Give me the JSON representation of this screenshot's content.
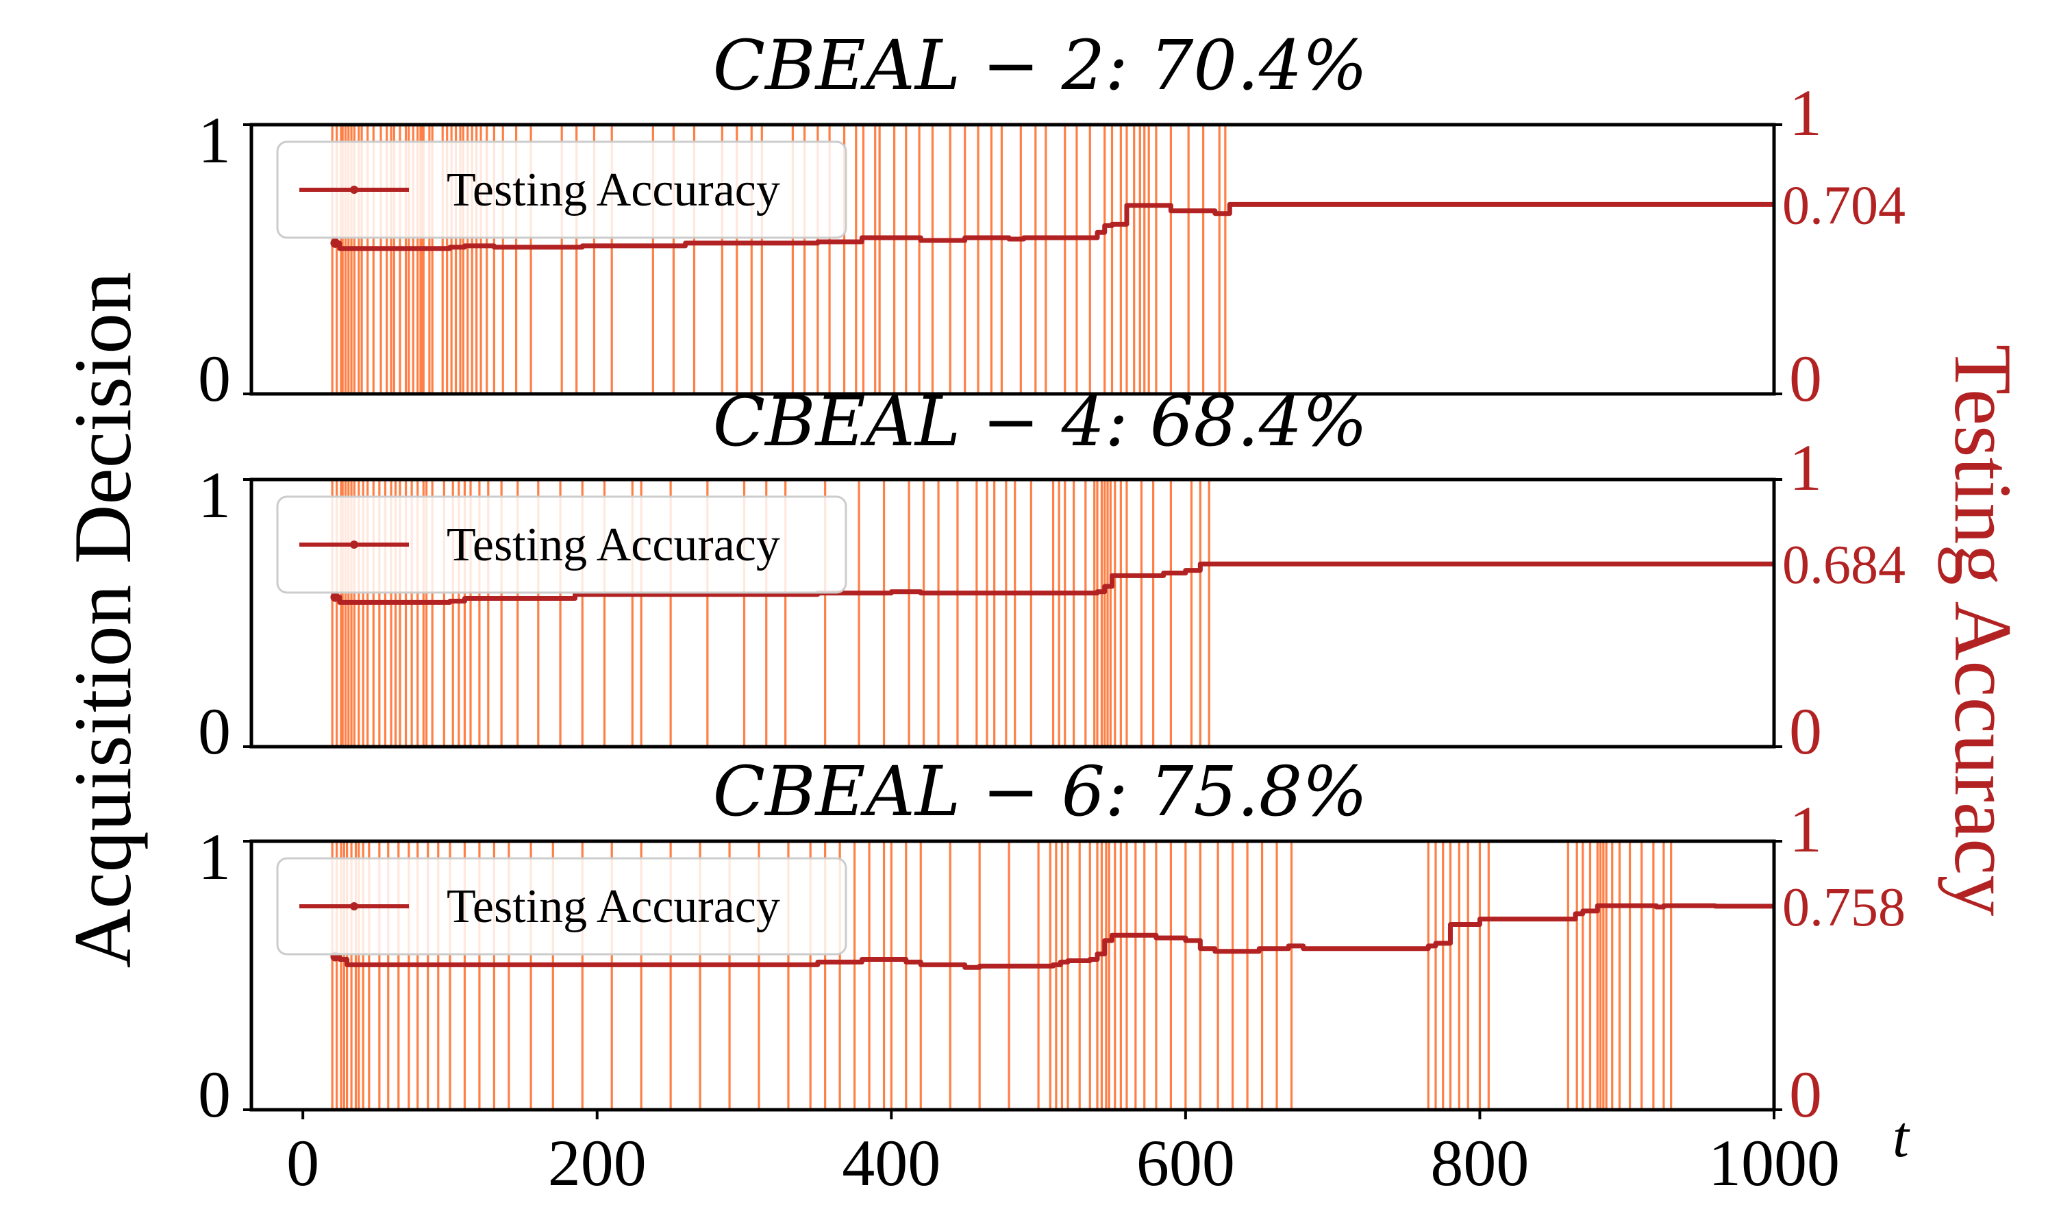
{
  "figure": {
    "left_ylabel": "Acquisition Decision",
    "right_ylabel": "Testing Accuracy",
    "xlabel": "t",
    "left_yticks": [
      "0",
      "1"
    ],
    "right_yticks": [
      "0",
      "1"
    ],
    "xticks": [
      "0",
      "200",
      "400",
      "600",
      "800",
      "1000"
    ],
    "colors": {
      "acquisition": "#FF7F45",
      "accuracy": "#B22222",
      "right_axis_text": "#B22222"
    }
  },
  "chart_data": [
    {
      "type": "line",
      "title": "CBEAL − 2: 70.4%",
      "legend": {
        "label": "Testing Accuracy",
        "placement": "top-left"
      },
      "final_accuracy_label": "0.704",
      "xlim": [
        -35,
        1000
      ],
      "ylim_left": [
        0,
        1
      ],
      "ylim_right": [
        0,
        1
      ],
      "series": [
        {
          "name": "Testing Accuracy",
          "x": [
            22,
            25,
            30,
            50,
            100,
            110,
            130,
            180,
            190,
            250,
            260,
            300,
            330,
            350,
            370,
            380,
            400,
            420,
            440,
            450,
            480,
            490,
            510,
            520,
            540,
            545,
            550,
            560,
            575,
            585,
            590,
            600,
            610,
            620,
            625,
            630,
            700,
            800,
            900,
            1000
          ],
          "y": [
            0.56,
            0.54,
            0.54,
            0.54,
            0.545,
            0.55,
            0.545,
            0.545,
            0.55,
            0.55,
            0.56,
            0.56,
            0.56,
            0.565,
            0.565,
            0.58,
            0.58,
            0.57,
            0.57,
            0.58,
            0.575,
            0.58,
            0.58,
            0.58,
            0.6,
            0.625,
            0.63,
            0.7,
            0.7,
            0.7,
            0.68,
            0.68,
            0.68,
            0.67,
            0.67,
            0.704,
            0.704,
            0.704,
            0.704,
            0.704
          ]
        }
      ],
      "acquisitions": [
        20,
        23,
        26,
        27,
        29,
        31,
        33,
        35,
        38,
        40,
        44,
        48,
        53,
        57,
        60,
        62,
        66,
        70,
        72,
        75,
        78,
        80,
        81,
        82,
        86,
        88,
        95,
        98,
        101,
        104,
        107,
        109,
        112,
        115,
        118,
        121,
        125,
        130,
        136,
        145,
        155,
        176,
        186,
        198,
        210,
        238,
        252,
        266,
        285,
        295,
        305,
        312,
        333,
        341,
        350,
        358,
        368,
        376,
        381,
        389,
        392,
        402,
        410,
        419,
        428,
        440,
        450,
        459,
        468,
        475,
        488,
        498,
        505,
        518,
        526,
        535,
        545,
        550,
        556,
        560,
        565,
        569,
        572,
        575,
        580,
        590,
        602,
        612,
        623,
        627
      ]
    },
    {
      "type": "line",
      "title": "CBEAL − 4: 68.4%",
      "legend": {
        "label": "Testing Accuracy",
        "placement": "top-left"
      },
      "final_accuracy_label": "0.684",
      "xlim": [
        -35,
        1000
      ],
      "ylim_left": [
        0,
        1
      ],
      "ylim_right": [
        0,
        1
      ],
      "series": [
        {
          "name": "Testing Accuracy",
          "x": [
            22,
            25,
            30,
            100,
            110,
            130,
            180,
            185,
            200,
            270,
            280,
            340,
            350,
            380,
            400,
            420,
            430,
            500,
            510,
            540,
            545,
            550,
            560,
            580,
            585,
            600,
            610,
            620,
            700,
            800,
            900,
            1000
          ],
          "y": [
            0.56,
            0.54,
            0.54,
            0.545,
            0.555,
            0.555,
            0.555,
            0.57,
            0.57,
            0.57,
            0.57,
            0.57,
            0.575,
            0.575,
            0.58,
            0.575,
            0.575,
            0.575,
            0.575,
            0.58,
            0.6,
            0.64,
            0.64,
            0.64,
            0.65,
            0.66,
            0.684,
            0.684,
            0.684,
            0.684,
            0.684,
            0.684
          ]
        }
      ],
      "acquisitions": [
        20,
        23,
        26,
        27,
        29,
        31,
        33,
        35,
        38,
        41,
        44,
        48,
        52,
        56,
        60,
        63,
        66,
        70,
        74,
        78,
        82,
        84,
        88,
        96,
        102,
        106,
        110,
        114,
        120,
        126,
        135,
        146,
        160,
        175,
        190,
        205,
        224,
        230,
        250,
        275,
        300,
        315,
        328,
        355,
        378,
        395,
        412,
        422,
        432,
        445,
        458,
        465,
        470,
        478,
        484,
        495,
        510,
        514,
        518,
        524,
        532,
        538,
        540,
        543,
        545,
        547,
        549,
        552,
        556,
        560,
        570,
        578,
        590,
        604,
        610,
        616
      ]
    },
    {
      "type": "line",
      "title": "CBEAL − 6: 75.8%",
      "legend": {
        "label": "Testing Accuracy",
        "placement": "top-left"
      },
      "final_accuracy_label": "0.758",
      "xlim": [
        -35,
        1000
      ],
      "ylim_left": [
        0,
        1
      ],
      "ylim_right": [
        0,
        1
      ],
      "series": [
        {
          "name": "Testing Accuracy",
          "x": [
            22,
            25,
            30,
            100,
            200,
            300,
            340,
            350,
            380,
            400,
            410,
            420,
            450,
            460,
            500,
            510,
            515,
            520,
            530,
            535,
            540,
            545,
            550,
            560,
            580,
            590,
            600,
            610,
            620,
            640,
            650,
            670,
            680,
            700,
            760,
            765,
            770,
            780,
            790,
            800,
            805,
            850,
            860,
            865,
            870,
            880,
            900,
            920,
            925,
            940,
            960,
            1000
          ],
          "y": [
            0.57,
            0.56,
            0.54,
            0.54,
            0.54,
            0.54,
            0.54,
            0.55,
            0.56,
            0.56,
            0.55,
            0.54,
            0.53,
            0.535,
            0.535,
            0.54,
            0.55,
            0.555,
            0.555,
            0.56,
            0.58,
            0.63,
            0.65,
            0.65,
            0.64,
            0.64,
            0.63,
            0.6,
            0.59,
            0.59,
            0.6,
            0.61,
            0.6,
            0.6,
            0.6,
            0.61,
            0.62,
            0.69,
            0.69,
            0.71,
            0.71,
            0.71,
            0.71,
            0.73,
            0.74,
            0.76,
            0.76,
            0.755,
            0.76,
            0.76,
            0.758,
            0.758
          ]
        }
      ],
      "acquisitions": [
        20,
        23,
        26,
        28,
        30,
        33,
        36,
        38,
        41,
        45,
        52,
        58,
        65,
        72,
        78,
        85,
        92,
        100,
        110,
        120,
        130,
        140,
        155,
        170,
        190,
        210,
        230,
        250,
        270,
        290,
        310,
        330,
        345,
        355,
        365,
        375,
        385,
        395,
        400,
        410,
        420,
        440,
        460,
        480,
        500,
        508,
        512,
        516,
        520,
        528,
        535,
        540,
        543,
        546,
        548,
        552,
        556,
        560,
        566,
        572,
        580,
        590,
        600,
        610,
        622,
        632,
        642,
        652,
        662,
        672,
        765,
        770,
        775,
        780,
        786,
        792,
        800,
        806,
        860,
        866,
        870,
        875,
        880,
        882,
        884,
        886,
        890,
        895,
        902,
        910,
        918,
        925,
        930
      ]
    }
  ]
}
